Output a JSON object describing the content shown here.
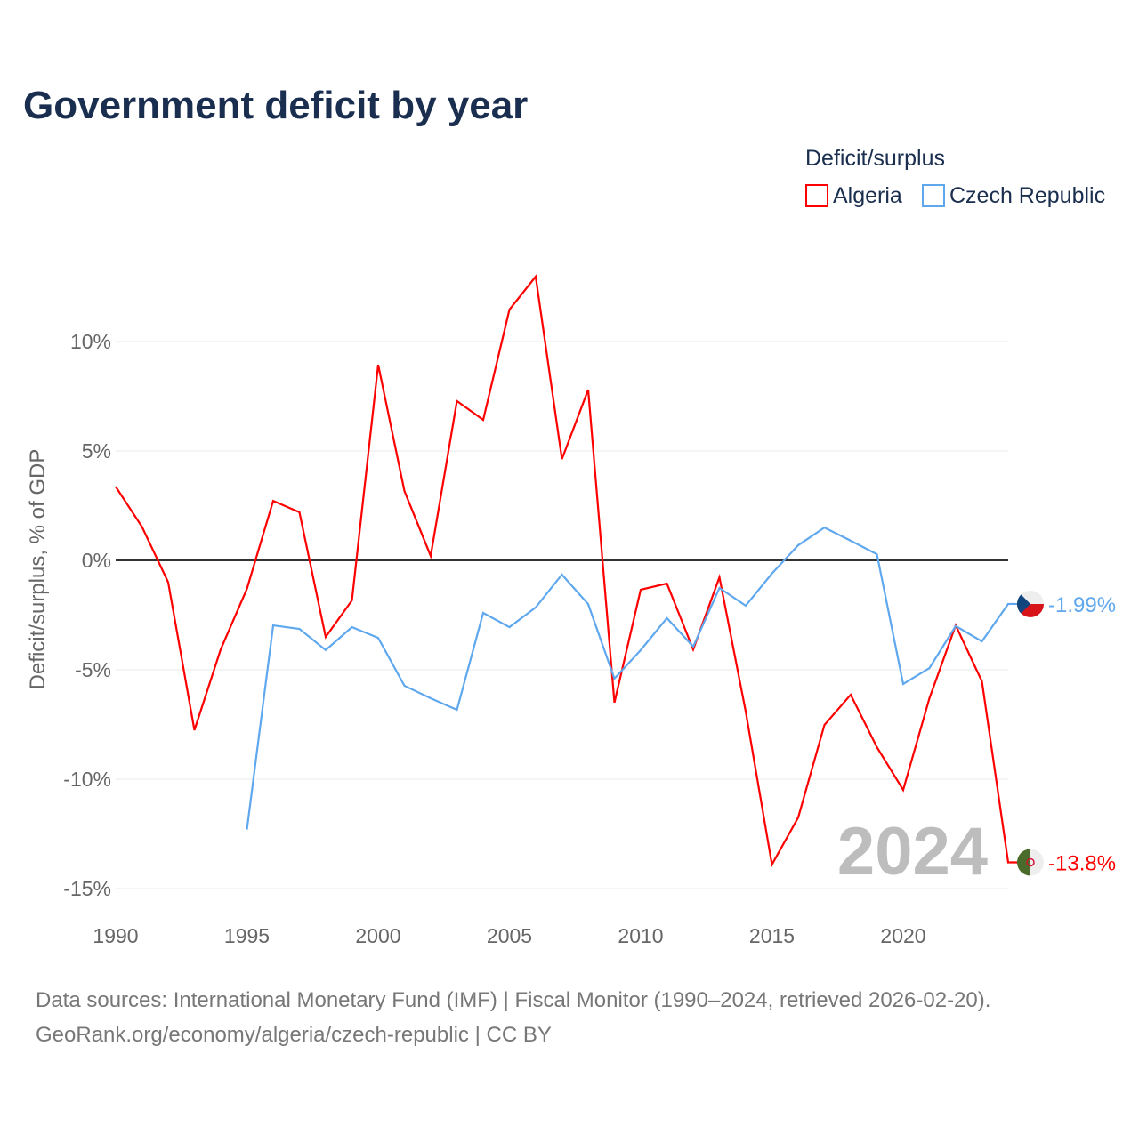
{
  "chart_data": {
    "type": "line",
    "title": "Government deficit by year",
    "ylabel": "Deficit/surplus, % of GDP",
    "xlabel": "",
    "ylim": [
      -15,
      13
    ],
    "xlim": [
      1990,
      2024
    ],
    "x_ticks": [
      "1990",
      "1995",
      "2000",
      "2005",
      "2010",
      "2015",
      "2020"
    ],
    "y_ticks": [
      {
        "v": 10,
        "label": "10%"
      },
      {
        "v": 5,
        "label": "5%"
      },
      {
        "v": 0,
        "label": "0%"
      },
      {
        "v": -5,
        "label": "-5%"
      },
      {
        "v": -10,
        "label": "-10%"
      },
      {
        "v": -15,
        "label": "-15%"
      }
    ],
    "legend_title": "Deficit/surplus",
    "legend_position": "top-right",
    "year_watermark": "2024",
    "series": [
      {
        "name": "Algeria",
        "color": "#ff0000",
        "end_label": "-13.8%",
        "start": 1990,
        "values": [
          3.37,
          1.54,
          -1.0,
          -7.76,
          -4.07,
          -1.3,
          2.72,
          2.2,
          -3.5,
          -1.83,
          8.94,
          3.17,
          0.2,
          7.28,
          6.42,
          11.46,
          12.97,
          4.63,
          7.8,
          -6.5,
          -1.34,
          -1.06,
          -4.07,
          -0.77,
          -6.9,
          -13.9,
          -11.75,
          -7.52,
          -6.14,
          -8.54,
          -10.49,
          -6.3,
          -2.97,
          -5.53,
          -13.8
        ]
      },
      {
        "name": "Czech Republic",
        "color": "#5fa8ee",
        "end_label": "-1.99%",
        "start": 1995,
        "values": [
          -12.3,
          -2.97,
          -3.13,
          -4.1,
          -3.05,
          -3.54,
          -5.73,
          -6.3,
          -6.83,
          -2.4,
          -3.05,
          -2.15,
          -0.65,
          -2.0,
          -5.4,
          -4.1,
          -2.64,
          -3.94,
          -1.26,
          -2.07,
          -0.6,
          0.69,
          1.5,
          0.9,
          0.28,
          -5.65,
          -4.92,
          -3.0,
          -3.7,
          -1.99
        ]
      }
    ]
  },
  "footer": {
    "line1": "Data sources: International Monetary Fund (IMF) | Fiscal Monitor (1990–2024, retrieved 2026-02-20).",
    "line2": "GeoRank.org/economy/algeria/czech-republic | CC BY"
  }
}
